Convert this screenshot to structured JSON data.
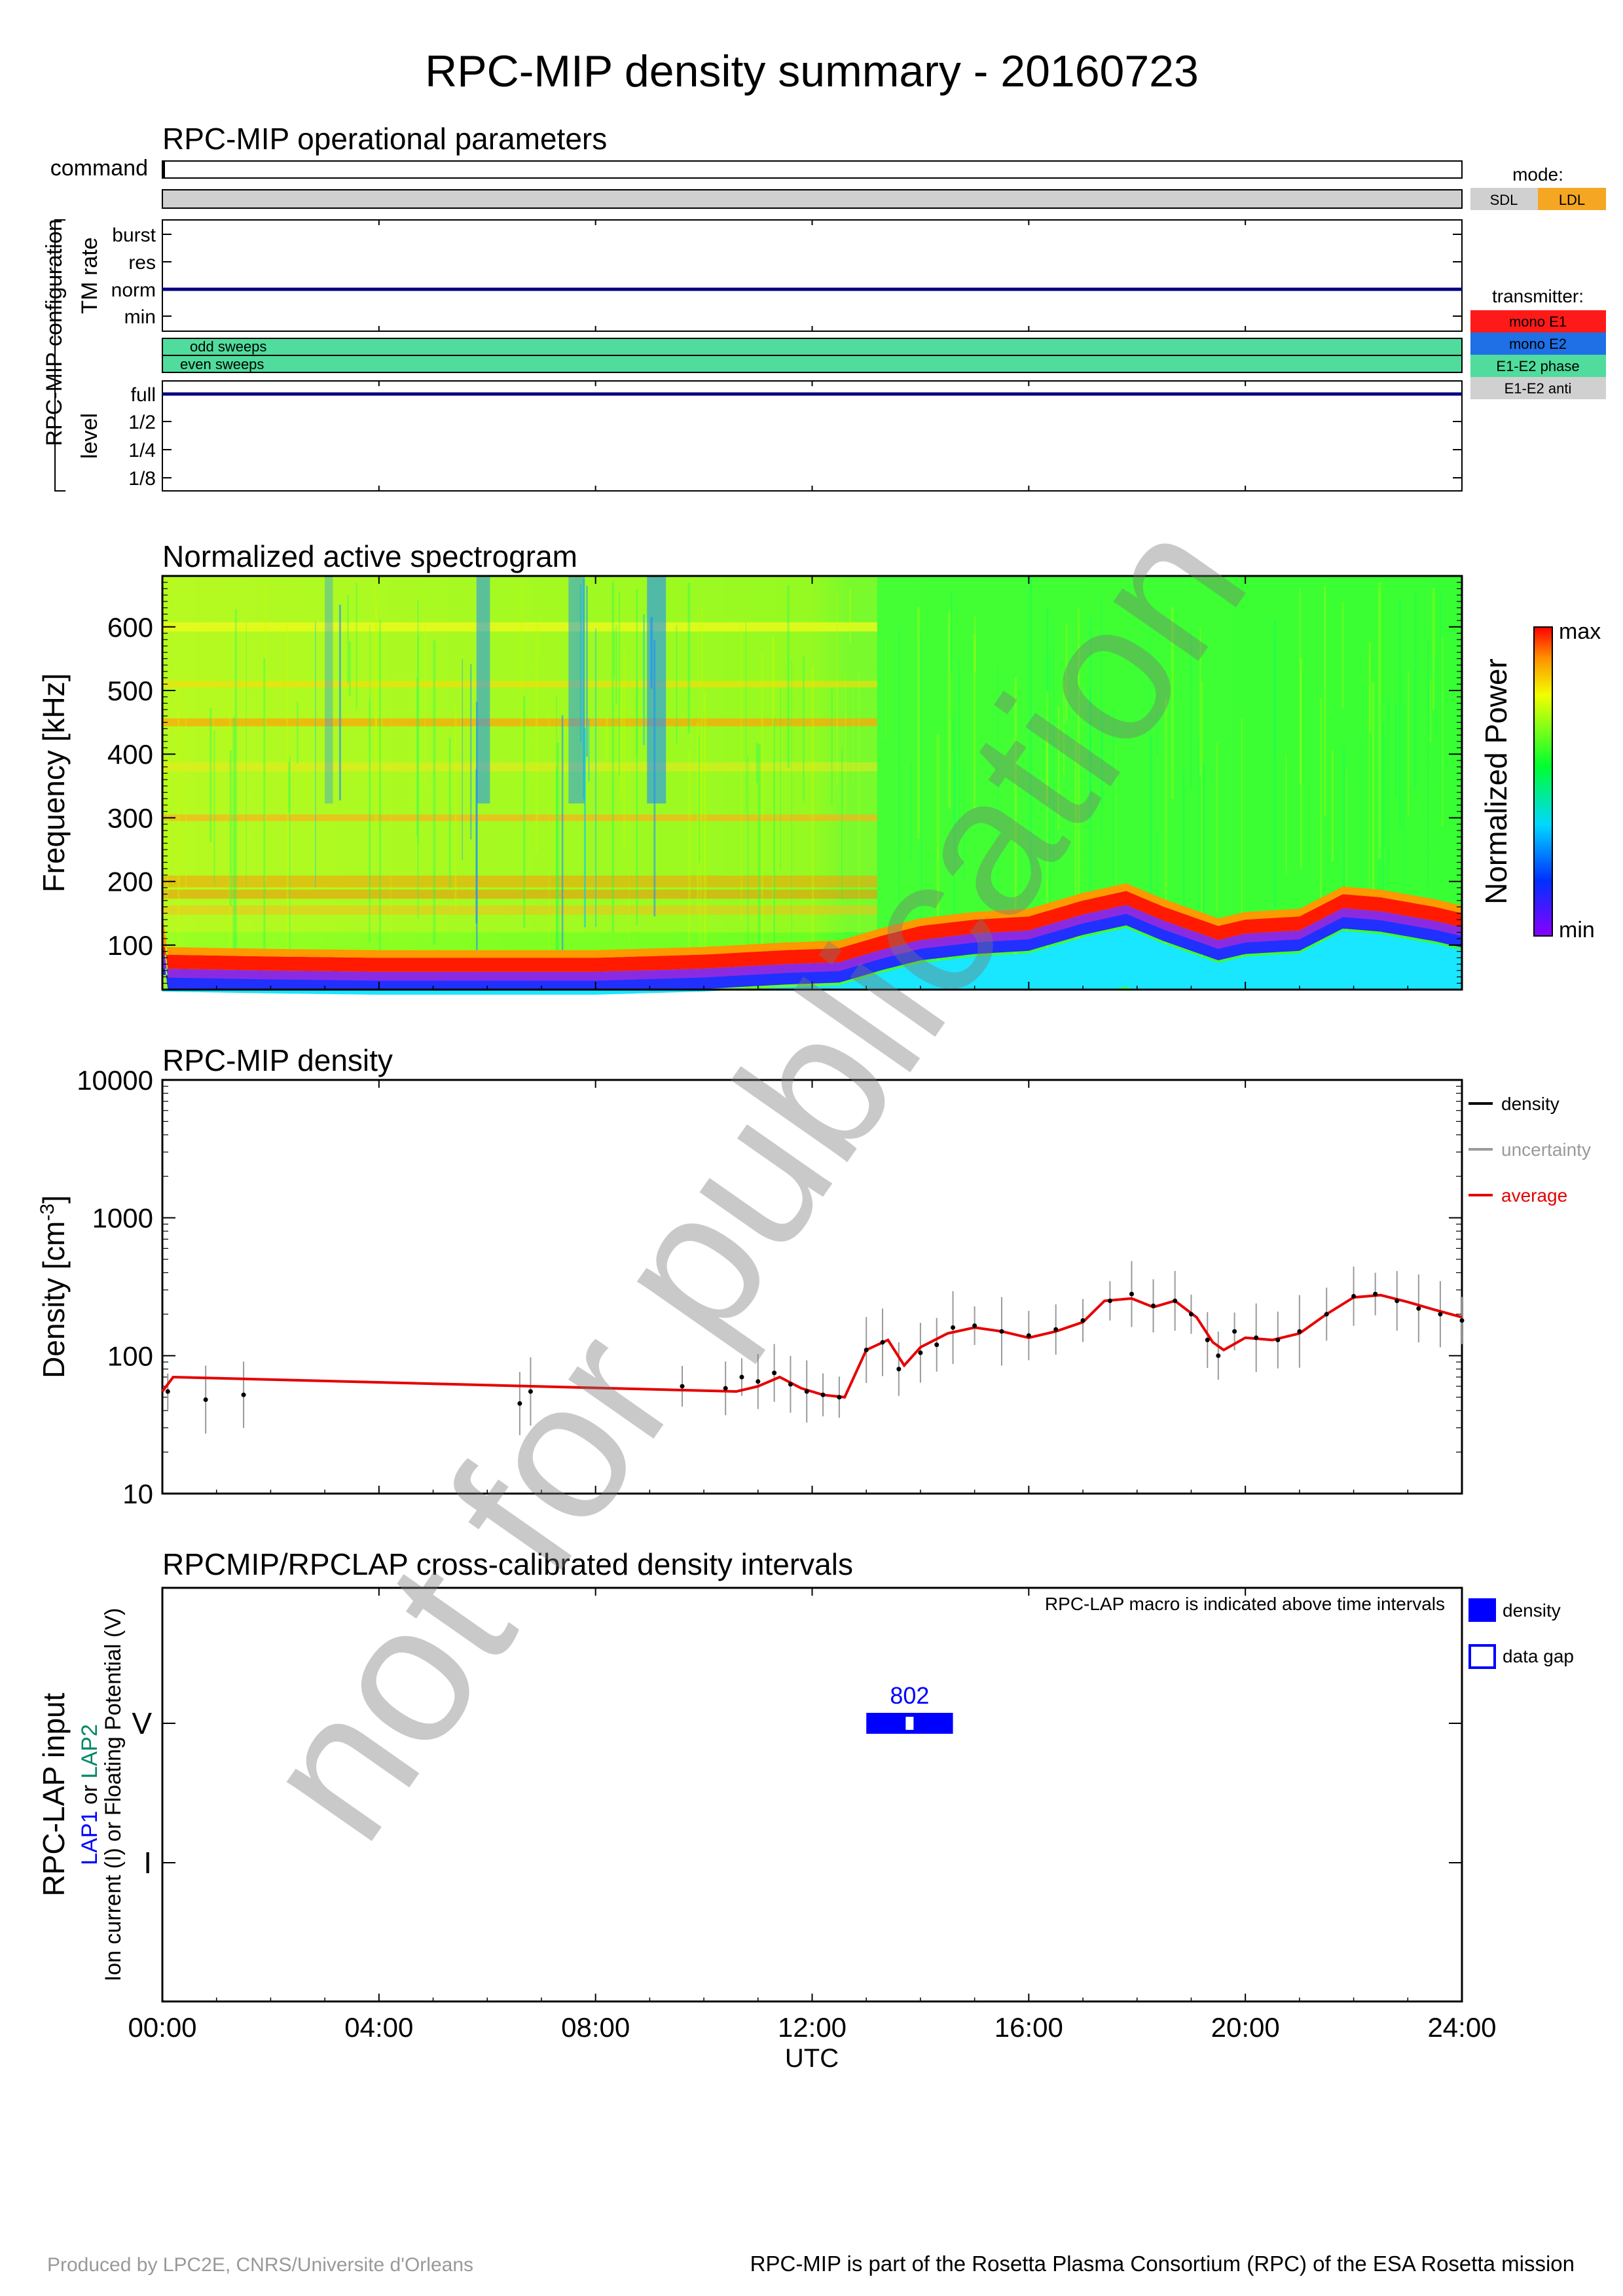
{
  "title": "RPC-MIP density summary - 20160723",
  "watermark": "not for publication",
  "footer": {
    "left": "Produced by LPC2E, CNRS/Universite d'Orleans",
    "right": "RPC-MIP is part of the Rosetta Plasma Consortium (RPC) of the ESA Rosetta mission"
  },
  "colors": {
    "sdl": "#d0d0d0",
    "ldl": "#f5a623",
    "mono_e1": "#ff1a1a",
    "mono_e2": "#1f6fe6",
    "e1e2_phase": "#4fdc9c",
    "e1e2_anti": "#d0d0d0",
    "tm_line": "#000080",
    "density_point": "#000000",
    "uncertainty": "#9a9a9a",
    "average": "#e60000",
    "lap_interval": "#0000ff",
    "lap1_label": "#0000ff",
    "lap2_label": "#008866"
  },
  "operational": {
    "title": "RPC-MIP operational parameters",
    "command_label": "command",
    "config_label": "RPC-MIP configuration",
    "tm_rate_label": "TM rate",
    "tm_rate_levels": [
      "burst",
      "res",
      "norm",
      "min"
    ],
    "tm_rate_value": "norm",
    "sweep_labels": [
      "odd sweeps",
      "even sweeps"
    ],
    "level_label": "level",
    "level_values": [
      "full",
      "1/2",
      "1/4",
      "1/8"
    ],
    "level_value": "full",
    "mode_legend": {
      "title": "mode:",
      "items": [
        "SDL",
        "LDL"
      ]
    },
    "transmitter_legend": {
      "title": "transmitter:",
      "items": [
        "mono E1",
        "mono E2",
        "E1-E2 phase",
        "E1-E2 anti"
      ]
    }
  },
  "spectrogram": {
    "title": "Normalized active spectrogram",
    "ylabel": "Frequency [kHz]",
    "yticks": [
      100,
      200,
      300,
      400,
      500,
      600
    ],
    "ylim": [
      30,
      680
    ],
    "colorbar_label": "Normalized Power",
    "colorbar_max": "max",
    "colorbar_min": "min",
    "plasma_line_khz": {
      "hours": [
        0,
        2,
        4,
        6,
        8,
        10,
        11.5,
        12.5,
        13.3,
        14,
        15,
        16,
        17,
        17.8,
        18.5,
        19.5,
        20,
        21,
        21.8,
        22.5,
        23.5,
        24
      ],
      "values": [
        65,
        62,
        60,
        60,
        60,
        65,
        72,
        75,
        95,
        110,
        120,
        125,
        150,
        165,
        140,
        110,
        120,
        125,
        160,
        155,
        140,
        130
      ]
    }
  },
  "density": {
    "title": "RPC-MIP density",
    "ylabel": "Density [cm-3]",
    "yticks": [
      "10",
      "100",
      "1000",
      "10000"
    ],
    "ylim": [
      10,
      10000
    ],
    "yscale": "log",
    "legend": [
      "density",
      "uncertainty",
      "average"
    ],
    "points": {
      "hours": [
        0.1,
        0.8,
        1.5,
        6.6,
        6.8,
        9.6,
        10.4,
        10.7,
        11.0,
        11.3,
        11.6,
        11.9,
        12.2,
        12.5,
        13.0,
        13.3,
        13.6,
        14.0,
        14.3,
        14.6,
        15.0,
        15.5,
        16.0,
        16.5,
        17.0,
        17.5,
        17.9,
        18.3,
        18.7,
        19.0,
        19.3,
        19.5,
        19.8,
        20.2,
        20.6,
        21.0,
        21.5,
        22.0,
        22.4,
        22.8,
        23.2,
        23.6,
        24.0
      ],
      "values": [
        55,
        48,
        52,
        45,
        55,
        60,
        58,
        70,
        65,
        75,
        62,
        55,
        52,
        50,
        110,
        125,
        80,
        105,
        120,
        160,
        165,
        150,
        140,
        155,
        180,
        250,
        280,
        230,
        250,
        200,
        130,
        100,
        150,
        135,
        130,
        150,
        200,
        270,
        280,
        250,
        220,
        200,
        180
      ]
    },
    "average": {
      "hours": [
        0.0,
        0.2,
        10.6,
        11.0,
        11.4,
        11.8,
        12.2,
        12.6,
        13.0,
        13.4,
        13.7,
        14.0,
        14.5,
        15.0,
        15.5,
        16.0,
        16.5,
        17.0,
        17.4,
        17.9,
        18.3,
        18.7,
        19.1,
        19.4,
        19.6,
        20.0,
        20.5,
        21.0,
        21.5,
        22.0,
        22.5,
        23.0,
        23.5,
        24.0
      ],
      "values": [
        55,
        70,
        55,
        60,
        70,
        58,
        52,
        50,
        110,
        130,
        85,
        115,
        145,
        160,
        150,
        135,
        150,
        175,
        250,
        260,
        225,
        250,
        190,
        125,
        110,
        135,
        130,
        145,
        200,
        265,
        275,
        245,
        215,
        190
      ]
    }
  },
  "lap": {
    "title": "RPCMIP/RPCLAP cross-calibrated density intervals",
    "note": "RPC-LAP macro is indicated above time intervals",
    "ylabel_main": "RPC-LAP input",
    "ylabel_lap1": "LAP1",
    "ylabel_or": " or ",
    "ylabel_lap2": "LAP2",
    "ylabel_sub": "Ion current (I) or Floating Potential (V)",
    "ylevels": [
      "V",
      "I"
    ],
    "macro": "802",
    "interval": {
      "start_hour": 13.0,
      "end_hour": 14.6,
      "gap_hour": 13.8,
      "level": "V"
    },
    "legend": [
      "density",
      "data gap"
    ]
  },
  "time_axis": {
    "label": "UTC",
    "ticks": [
      "00:00",
      "04:00",
      "08:00",
      "12:00",
      "16:00",
      "20:00",
      "24:00"
    ],
    "xlim": [
      0,
      24
    ]
  }
}
